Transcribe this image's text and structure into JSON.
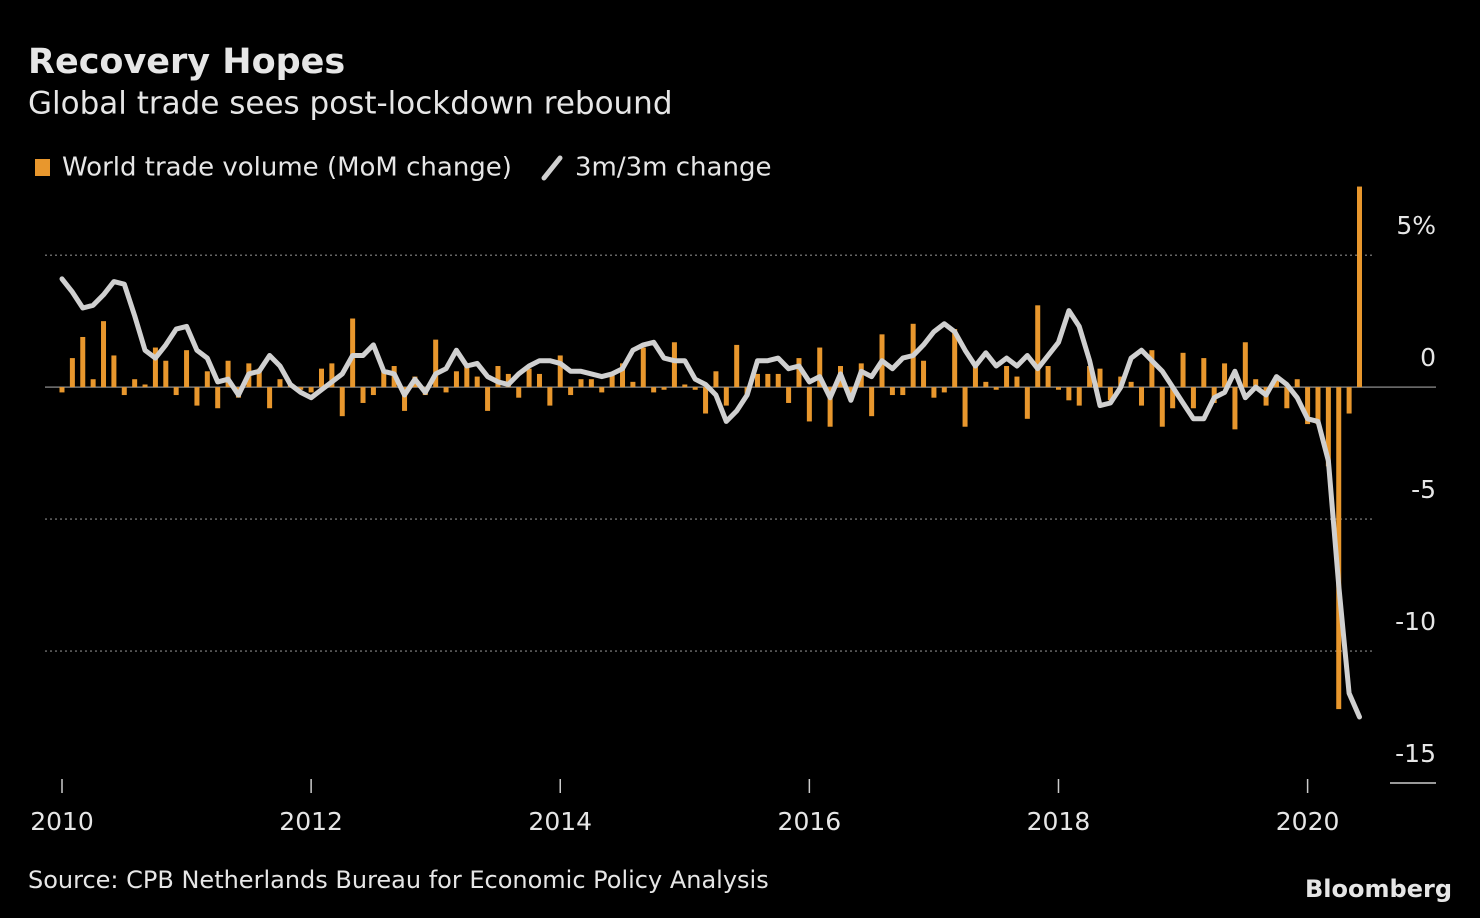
{
  "chart_data": {
    "type": "bar-line",
    "title": "Recovery Hopes",
    "subtitle": "Global trade sees post-lockdown rebound",
    "source": "Source: CPB Netherlands Bureau for Economic Policy Analysis",
    "brand": "Bloomberg",
    "categories": [
      "2010",
      null,
      null,
      null,
      null,
      null,
      null,
      null,
      null,
      null,
      null,
      null,
      null,
      null,
      null,
      null,
      null,
      null,
      null,
      null,
      null,
      null,
      null,
      null,
      "2012",
      null,
      null,
      null,
      null,
      null,
      null,
      null,
      null,
      null,
      null,
      null,
      null,
      null,
      null,
      null,
      null,
      null,
      null,
      null,
      null,
      null,
      null,
      null,
      "2014",
      null,
      null,
      null,
      null,
      null,
      null,
      null,
      null,
      null,
      null,
      null,
      null,
      null,
      null,
      null,
      null,
      null,
      null,
      null,
      null,
      null,
      null,
      null,
      "2016",
      null,
      null,
      null,
      null,
      null,
      null,
      null,
      null,
      null,
      null,
      null,
      null,
      null,
      null,
      null,
      null,
      null,
      null,
      null,
      null,
      null,
      null,
      null,
      "2018",
      null,
      null,
      null,
      null,
      null,
      null,
      null,
      null,
      null,
      null,
      null,
      null,
      null,
      null,
      null,
      null,
      null,
      null,
      null,
      null,
      null,
      null,
      null,
      "2020",
      null,
      null,
      null,
      null,
      null
    ],
    "series": [
      {
        "name": "World trade volume (MoM change)",
        "type": "bar",
        "color": "#e8972d",
        "values": [
          -0.2,
          1.1,
          1.9,
          0.3,
          2.5,
          1.2,
          -0.3,
          0.3,
          0.1,
          1.5,
          1.0,
          -0.3,
          1.4,
          -0.7,
          0.6,
          -0.8,
          1.0,
          -0.4,
          0.9,
          0.7,
          -0.8,
          0.3,
          0.1,
          -0.1,
          -0.2,
          0.7,
          0.9,
          -1.1,
          2.6,
          -0.6,
          -0.3,
          0.6,
          0.8,
          -0.9,
          0.4,
          -0.3,
          1.8,
          -0.2,
          0.6,
          0.9,
          0.4,
          -0.9,
          0.8,
          0.5,
          -0.4,
          0.7,
          0.5,
          -0.7,
          1.2,
          -0.3,
          0.3,
          0.3,
          -0.2,
          0.5,
          0.9,
          0.2,
          1.5,
          -0.2,
          -0.1,
          1.7,
          0.1,
          -0.1,
          -1.0,
          0.6,
          -0.7,
          1.6,
          -0.3,
          0.5,
          0.5,
          0.5,
          -0.6,
          1.1,
          -1.3,
          1.5,
          -1.5,
          0.8,
          -0.4,
          0.9,
          -1.1,
          2.0,
          -0.3,
          -0.3,
          2.4,
          1.0,
          -0.4,
          -0.2,
          2.2,
          -1.5,
          0.9,
          0.2,
          -0.1,
          0.8,
          0.4,
          -1.2,
          3.1,
          0.8,
          -0.1,
          -0.5,
          -0.7,
          0.8,
          0.7,
          -0.5,
          0.4,
          0.2,
          -0.7,
          1.4,
          -1.5,
          -0.8,
          1.3,
          -0.8,
          1.1,
          -0.6,
          0.9,
          -1.6,
          1.7,
          0.3,
          -0.7,
          0.4,
          -0.8,
          0.3,
          -1.4,
          -1.4,
          -3.0,
          -12.2,
          -1.0,
          7.6
        ]
      },
      {
        "name": "3m/3m change",
        "type": "line",
        "color": "#d0d0d0",
        "values": [
          4.1,
          3.6,
          3.0,
          3.1,
          3.5,
          4.0,
          3.9,
          2.7,
          1.4,
          1.1,
          1.6,
          2.2,
          2.3,
          1.4,
          1.1,
          0.2,
          0.3,
          -0.3,
          0.5,
          0.6,
          1.2,
          0.8,
          0.1,
          -0.2,
          -0.4,
          -0.1,
          0.2,
          0.5,
          1.2,
          1.2,
          1.6,
          0.6,
          0.5,
          -0.3,
          0.3,
          -0.2,
          0.5,
          0.7,
          1.4,
          0.8,
          0.9,
          0.4,
          0.2,
          0.1,
          0.5,
          0.8,
          1.0,
          1.0,
          0.9,
          0.6,
          0.6,
          0.5,
          0.4,
          0.5,
          0.7,
          1.4,
          1.6,
          1.7,
          1.1,
          1.0,
          1.0,
          0.3,
          0.1,
          -0.3,
          -1.3,
          -0.9,
          -0.3,
          1.0,
          1.0,
          1.1,
          0.7,
          0.8,
          0.2,
          0.4,
          -0.4,
          0.5,
          -0.5,
          0.6,
          0.4,
          1.0,
          0.7,
          1.1,
          1.2,
          1.6,
          2.1,
          2.4,
          2.1,
          1.4,
          0.8,
          1.3,
          0.8,
          1.1,
          0.8,
          1.2,
          0.7,
          1.2,
          1.7,
          2.9,
          2.3,
          1.0,
          -0.7,
          -0.6,
          0.0,
          1.1,
          1.4,
          1.0,
          0.6,
          0.0,
          -0.6,
          -1.2,
          -1.2,
          -0.4,
          -0.2,
          0.6,
          -0.4,
          0.0,
          -0.3,
          0.4,
          0.1,
          -0.4,
          -1.2,
          -1.3,
          -2.8,
          -7.5,
          -11.6,
          -12.5
        ]
      }
    ],
    "ylim": [
      -15,
      8
    ],
    "yticks": [
      -15,
      -10,
      -5,
      0,
      {
        "value": 5,
        "label": "5%"
      }
    ],
    "grid": true
  }
}
